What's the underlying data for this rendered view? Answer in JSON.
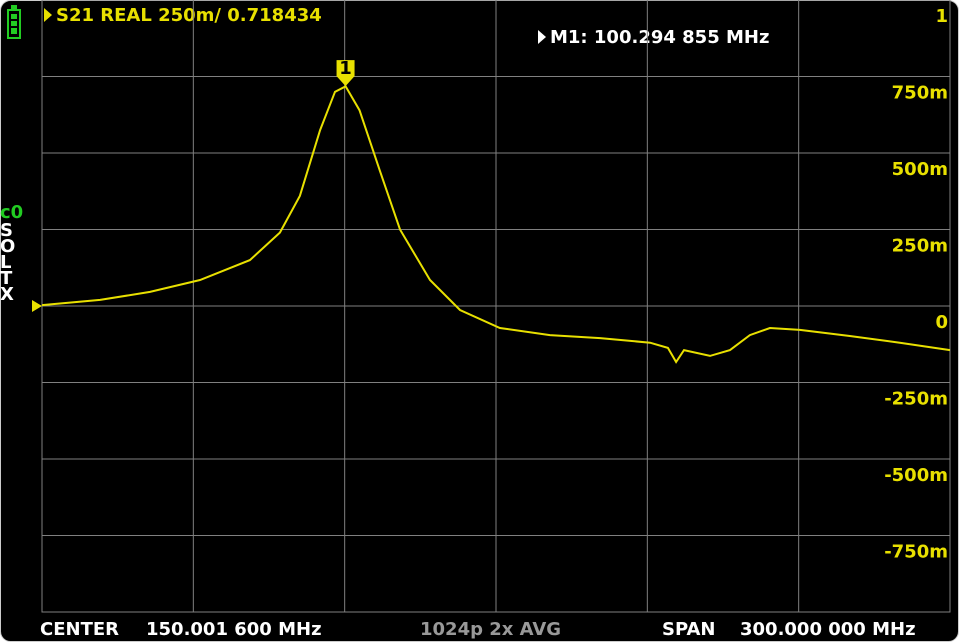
{
  "header": {
    "trace": "S21 REAL 250m/ 0.718434",
    "marker": "M1: 100.294 855 MHz"
  },
  "side": {
    "calibration": "c0",
    "flags": [
      "S",
      "O",
      "L",
      "T",
      "X"
    ]
  },
  "footer": {
    "center_label": "CENTER",
    "center": "150.001 600 MHz",
    "points": "1024p 2x AVG",
    "span_label": "SPAN",
    "span": "300.000 000 MHz"
  },
  "chart_data": {
    "type": "line",
    "x": [
      0,
      19.2,
      35.7,
      52.2,
      68.7,
      78.6,
      85.2,
      91.9,
      96.8,
      100.3,
      104.9,
      111.7,
      118.3,
      128.2,
      138.1,
      151.3,
      167.8,
      184.4,
      200.9,
      206.8,
      209.5,
      212.1,
      220.7,
      227.3,
      233.9,
      240.5,
      250.4,
      266.9,
      283.4,
      300
    ],
    "values": [
      0.003,
      0.02,
      0.046,
      0.085,
      0.15,
      0.24,
      0.36,
      0.575,
      0.7,
      0.718,
      0.64,
      0.44,
      0.25,
      0.085,
      -0.013,
      -0.072,
      -0.095,
      -0.105,
      -0.12,
      -0.137,
      -0.183,
      -0.144,
      -0.163,
      -0.144,
      -0.095,
      -0.072,
      -0.078,
      -0.098,
      -0.12,
      -0.144
    ],
    "color": "#e8e000",
    "xlim": [
      0.0016,
      300.0016
    ],
    "ylim": [
      -1,
      1
    ],
    "yticks": [
      1,
      {
        "value": 0.75,
        "label": "750m"
      },
      {
        "value": 0.5,
        "label": "500m"
      },
      {
        "value": 0.25,
        "label": "250m"
      },
      0,
      {
        "value": -0.25,
        "label": "-250m"
      },
      {
        "value": -0.5,
        "label": "-500m"
      },
      {
        "value": -0.75,
        "label": "-750m"
      }
    ],
    "grid": true,
    "marker": {
      "label": "1",
      "x": 100.294855,
      "y": 0.718434
    }
  }
}
